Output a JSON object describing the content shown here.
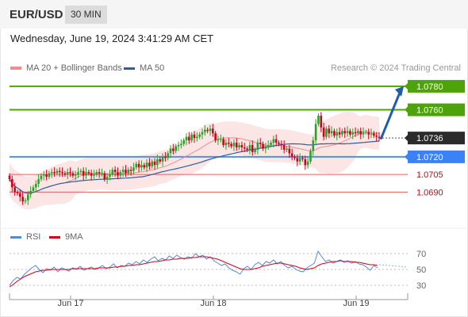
{
  "header": {
    "symbol": "EUR/USD",
    "timeframe": "30 MIN"
  },
  "timestamp": "Wednesday, June 19, 2024 3:41:29 AM CET",
  "legend": {
    "bb": {
      "label": "MA 20 + Bollinger Bands",
      "color": "#f08c8c"
    },
    "ma50": {
      "label": "MA 50",
      "color": "#2e5d9a"
    }
  },
  "credit": "Research © 2024 Trading Central",
  "rsi_legend": {
    "rsi": {
      "label": "RSI",
      "color": "#5b87d6"
    },
    "ma9": {
      "label": "9MA",
      "color": "#d0021b"
    }
  },
  "colors": {
    "up": "#2ca02c",
    "down": "#d0021b",
    "support": "#4e8ef7",
    "resistance": "#4fa30a",
    "minor": "#e06060",
    "arrow": "#1f5dab"
  },
  "chart_data": [
    {
      "type": "candlestick",
      "title": "EUR/USD",
      "timeframe": "30 MIN",
      "x_tick_labels": [
        "Jun 17",
        "Jun 18",
        "Jun 19"
      ],
      "ylim": [
        1.0668,
        1.0786
      ],
      "levels": [
        {
          "value": 1.078,
          "label": "1.0780",
          "kind": "target"
        },
        {
          "value": 1.076,
          "label": "1.0760",
          "kind": "resistance"
        },
        {
          "value": 1.0736,
          "label": "1.0736",
          "kind": "last_price"
        },
        {
          "value": 1.072,
          "label": "1.0720",
          "kind": "pivot"
        },
        {
          "value": 1.0705,
          "label": "1.0705",
          "kind": "support"
        },
        {
          "value": 1.069,
          "label": "1.0690",
          "kind": "support"
        }
      ],
      "projection": {
        "from": 1.0735,
        "to": 1.078,
        "direction": "up"
      },
      "close": [
        1.0701,
        1.0694,
        1.069,
        1.0689,
        1.0686,
        1.0682,
        1.0683,
        1.0688,
        1.0691,
        1.0694,
        1.0697,
        1.0701,
        1.0704,
        1.0705,
        1.0703,
        1.0706,
        1.0707,
        1.0706,
        1.0708,
        1.0707,
        1.0706,
        1.0705,
        1.0707,
        1.0706,
        1.0704,
        1.0705,
        1.0707,
        1.0708,
        1.0704,
        1.0707,
        1.0706,
        1.0704,
        1.0705,
        1.0707,
        1.0706,
        1.0706,
        1.0701,
        1.0703,
        1.0705,
        1.0709,
        1.0707,
        1.0704,
        1.0707,
        1.0709,
        1.0706,
        1.0709,
        1.0708,
        1.0711,
        1.0714,
        1.0711,
        1.0713,
        1.0711,
        1.0715,
        1.0712,
        1.0716,
        1.0713,
        1.0718,
        1.0716,
        1.072,
        1.0719,
        1.0723,
        1.0727,
        1.0725,
        1.0729,
        1.073,
        1.0731,
        1.0734,
        1.0737,
        1.0734,
        1.0739,
        1.0736,
        1.0737,
        1.0739,
        1.0741,
        1.0743,
        1.0742,
        1.0744,
        1.074,
        1.0734,
        1.0735,
        1.0735,
        1.073,
        1.0732,
        1.0731,
        1.0729,
        1.0732,
        1.0728,
        1.073,
        1.0728,
        1.0727,
        1.0726,
        1.073,
        1.0724,
        1.0726,
        1.0732,
        1.0731,
        1.0727,
        1.0729,
        1.073,
        1.0732,
        1.0735,
        1.0732,
        1.0731,
        1.073,
        1.0726,
        1.0727,
        1.0723,
        1.072,
        1.0719,
        1.0716,
        1.0719,
        1.0718,
        1.0713,
        1.0716,
        1.0725,
        1.0734,
        1.0748,
        1.0755,
        1.0745,
        1.0737,
        1.0744,
        1.074,
        1.0742,
        1.0738,
        1.0741,
        1.0739,
        1.0742,
        1.074,
        1.0742,
        1.0739,
        1.0741,
        1.074,
        1.0742,
        1.0739,
        1.0741,
        1.0741,
        1.0739,
        1.074,
        1.0738,
        1.0737,
        1.0736
      ],
      "ma20_last": 1.074,
      "ma50_last": 1.0733,
      "bollinger_last": {
        "upper": 1.0748,
        "lower": 1.0727
      }
    },
    {
      "type": "line",
      "title": "RSI",
      "ylim": [
        20,
        80
      ],
      "y_tick_labels": [
        "70",
        "50",
        "30"
      ],
      "series": [
        {
          "name": "RSI",
          "values": [
            30,
            36,
            40,
            38,
            44,
            48,
            52,
            55,
            50,
            46,
            51,
            49,
            53,
            47,
            52,
            50,
            48,
            52,
            50,
            54,
            49,
            51,
            53,
            50,
            52,
            55,
            51,
            53,
            57,
            52,
            55,
            54,
            58,
            56,
            60,
            57,
            62,
            59,
            63,
            66,
            61,
            64,
            62,
            67,
            64,
            68,
            65,
            63,
            66,
            64,
            70,
            66,
            68,
            63,
            66,
            61,
            58,
            55,
            57,
            52,
            49,
            47,
            44,
            51,
            54,
            50,
            56,
            59,
            55,
            60,
            58,
            62,
            57,
            60,
            55,
            52,
            54,
            50,
            48,
            47,
            52,
            55,
            58,
            73,
            66,
            60,
            62,
            58,
            60,
            62,
            59,
            61,
            58,
            60,
            57,
            56,
            53,
            49,
            55,
            52
          ]
        },
        {
          "name": "9MA",
          "values": [
            28,
            31,
            35,
            38,
            41,
            43,
            45,
            47,
            48,
            49,
            49,
            50,
            50,
            50,
            50,
            50,
            50,
            51,
            51,
            51,
            51,
            51,
            51,
            51,
            52,
            52,
            52,
            52,
            53,
            53,
            54,
            54,
            55,
            55,
            56,
            56,
            57,
            58,
            59,
            60,
            60,
            61,
            62,
            62,
            63,
            63,
            64,
            64,
            64,
            65,
            65,
            66,
            66,
            66,
            65,
            64,
            63,
            61,
            59,
            57,
            55,
            53,
            51,
            50,
            50,
            50,
            51,
            52,
            54,
            55,
            56,
            57,
            58,
            58,
            57,
            56,
            55,
            54,
            52,
            51,
            50,
            51,
            52,
            55,
            57,
            58,
            59,
            60,
            60,
            61,
            60,
            60,
            60,
            59,
            59,
            58,
            57,
            56,
            56,
            55
          ]
        }
      ]
    }
  ]
}
